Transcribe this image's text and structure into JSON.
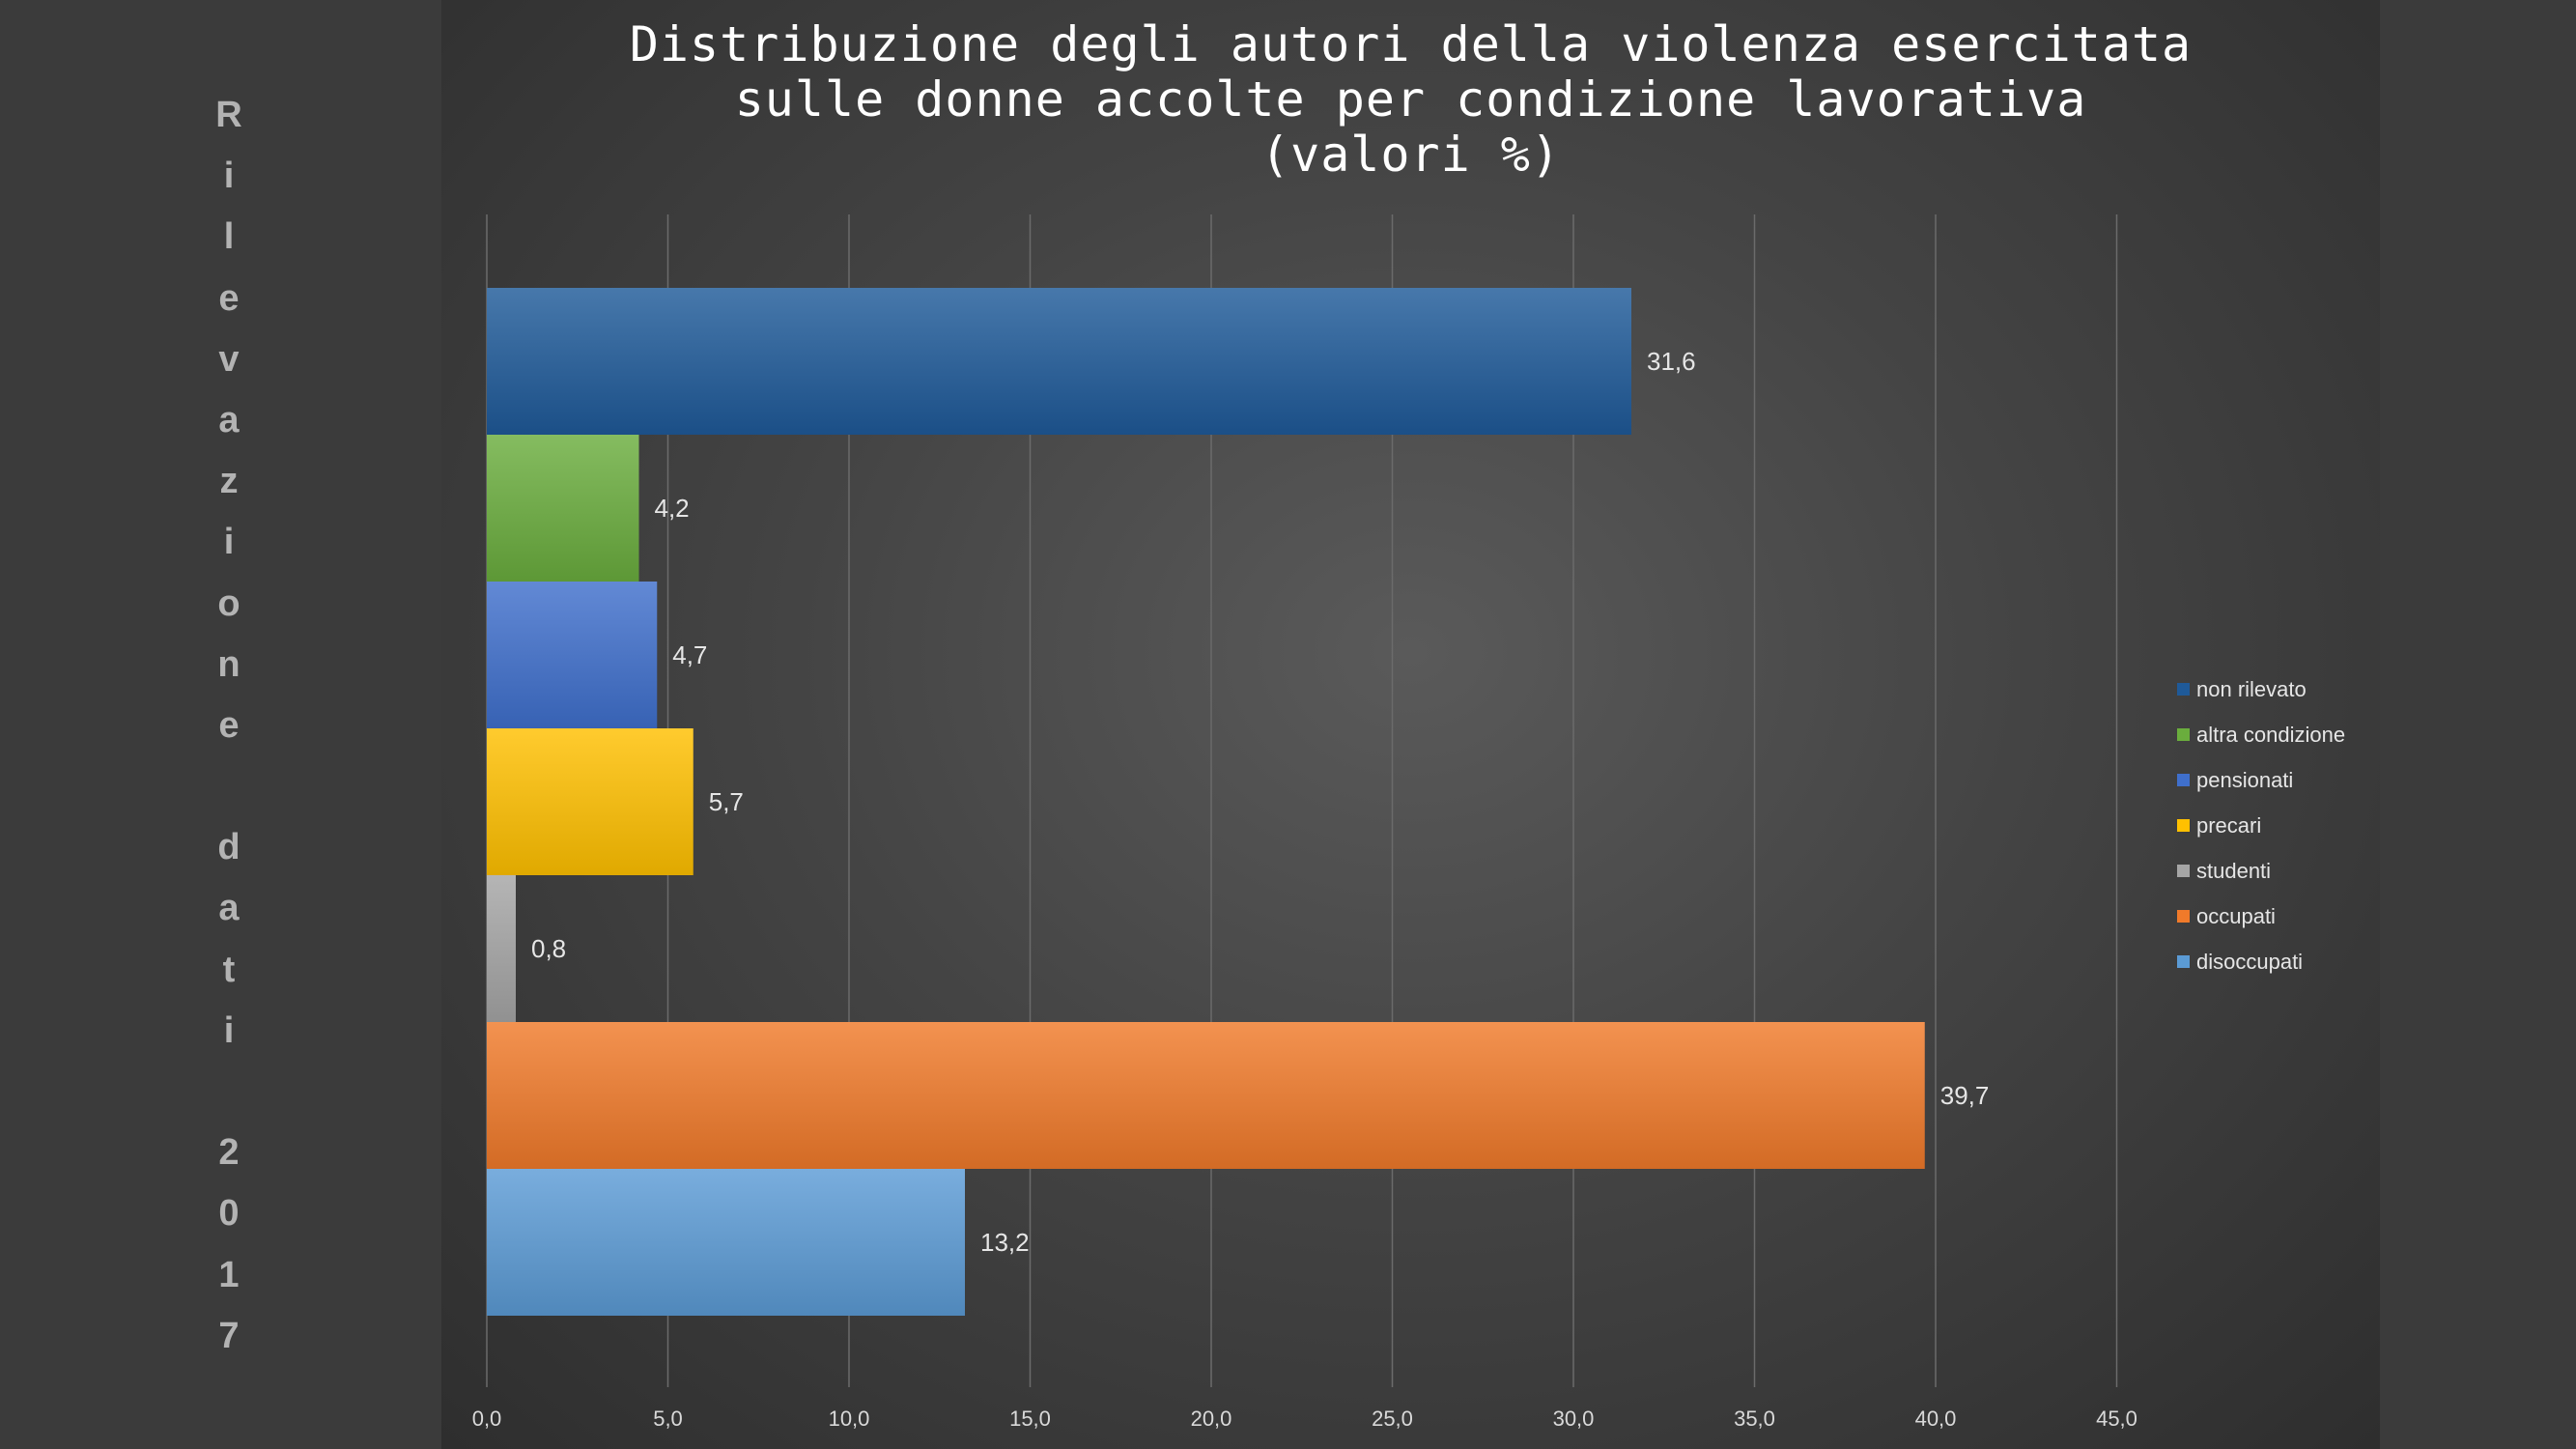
{
  "side_label": [
    "R",
    "i",
    "l",
    "e",
    "v",
    "a",
    "z",
    "i",
    "o",
    "n",
    "e",
    "",
    "d",
    "a",
    "t",
    "i",
    "",
    "2",
    "0",
    "1",
    "7"
  ],
  "chart_data": {
    "type": "bar",
    "orientation": "horizontal",
    "title_lines": [
      "Distribuzione degli autori della violenza esercitata",
      "sulle donne accolte per condizione lavorativa",
      "(valori %)"
    ],
    "categories": [
      "non rilevato",
      "altra condizione",
      "pensionati",
      "precari",
      "studenti",
      "occupati",
      "disocc­upati"
    ],
    "values": [
      31.6,
      4.2,
      4.7,
      5.7,
      0.8,
      39.7,
      13.2
    ],
    "value_labels": [
      "31,6",
      "4,2",
      "4,7",
      "5,7",
      "0,8",
      "39,7",
      "13,2"
    ],
    "colors": [
      "#1f5a99",
      "#6aad3d",
      "#3f6fcc",
      "#ffc000",
      "#a5a5a5",
      "#f07a2a",
      "#5b9bd5"
    ],
    "xlim": [
      0,
      45
    ],
    "x_ticks": [
      "0,0",
      "5,0",
      "10,0",
      "15,0",
      "20,0",
      "25,0",
      "30,0",
      "35,0",
      "40,0",
      "45,0"
    ],
    "grid": true,
    "legend_position": "right"
  },
  "legend": [
    {
      "label": "non rilevato",
      "color": "#1f5a99"
    },
    {
      "label": "altra condizione",
      "color": "#6aad3d"
    },
    {
      "label": "pensionati",
      "color": "#3f6fcc"
    },
    {
      "label": "precari",
      "color": "#ffc000"
    },
    {
      "label": "studenti",
      "color": "#a5a5a5"
    },
    {
      "label": "occupati",
      "color": "#f07a2a"
    },
    {
      "label": "disoccupati",
      "color": "#5b9bd5"
    }
  ]
}
